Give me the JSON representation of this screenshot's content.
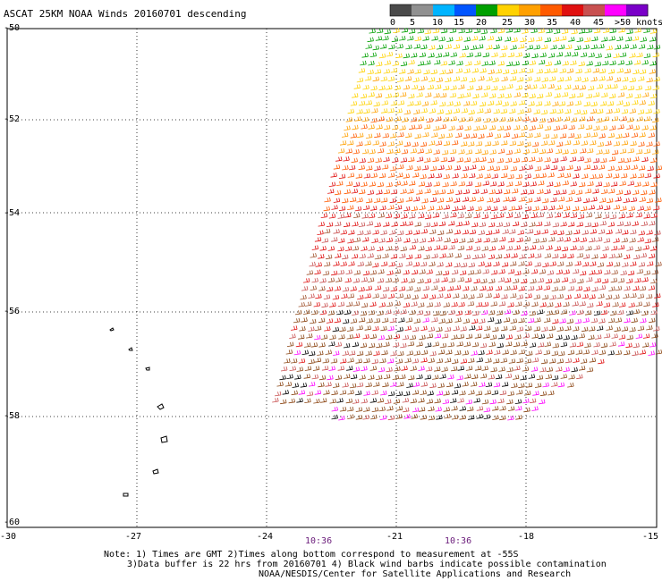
{
  "title": "ASCAT 25KM NOAA Winds 20160701 descending",
  "legend": {
    "labels": [
      "0",
      "5",
      "10",
      "15",
      "20",
      "25",
      "30",
      "35",
      "40",
      "45",
      ">50 knots"
    ],
    "colors": [
      "#4a4a4a",
      "#909090",
      "#00b4ff",
      "#0055ff",
      "#00a000",
      "#ffd200",
      "#ffa000",
      "#ff5a00",
      "#e01010",
      "#c85050",
      "#ff00ff",
      "#7a00c8"
    ]
  },
  "axes": {
    "lat_labels": [
      "-50",
      "-52",
      "-54",
      "-56",
      "-58",
      "-60"
    ],
    "lon_labels": [
      "-30",
      "-27",
      "-24",
      "-21",
      "-18",
      "-15"
    ]
  },
  "pass_times": [
    "10:36",
    "10:36"
  ],
  "notes": {
    "line1": "Note: 1) Times are GMT 2)Times along bottom correspond to measurement at -55S",
    "line2": "3)Data buffer is 22 hrs from 20160701 4) Black wind barbs indicate possible contamination",
    "line3": "NOAA/NESDIS/Center for Satellite Applications and Research"
  },
  "colors": {
    "frame": "#000000",
    "grid": "#000000",
    "background": "#ffffff",
    "time_text": "#6a1b7a"
  }
}
